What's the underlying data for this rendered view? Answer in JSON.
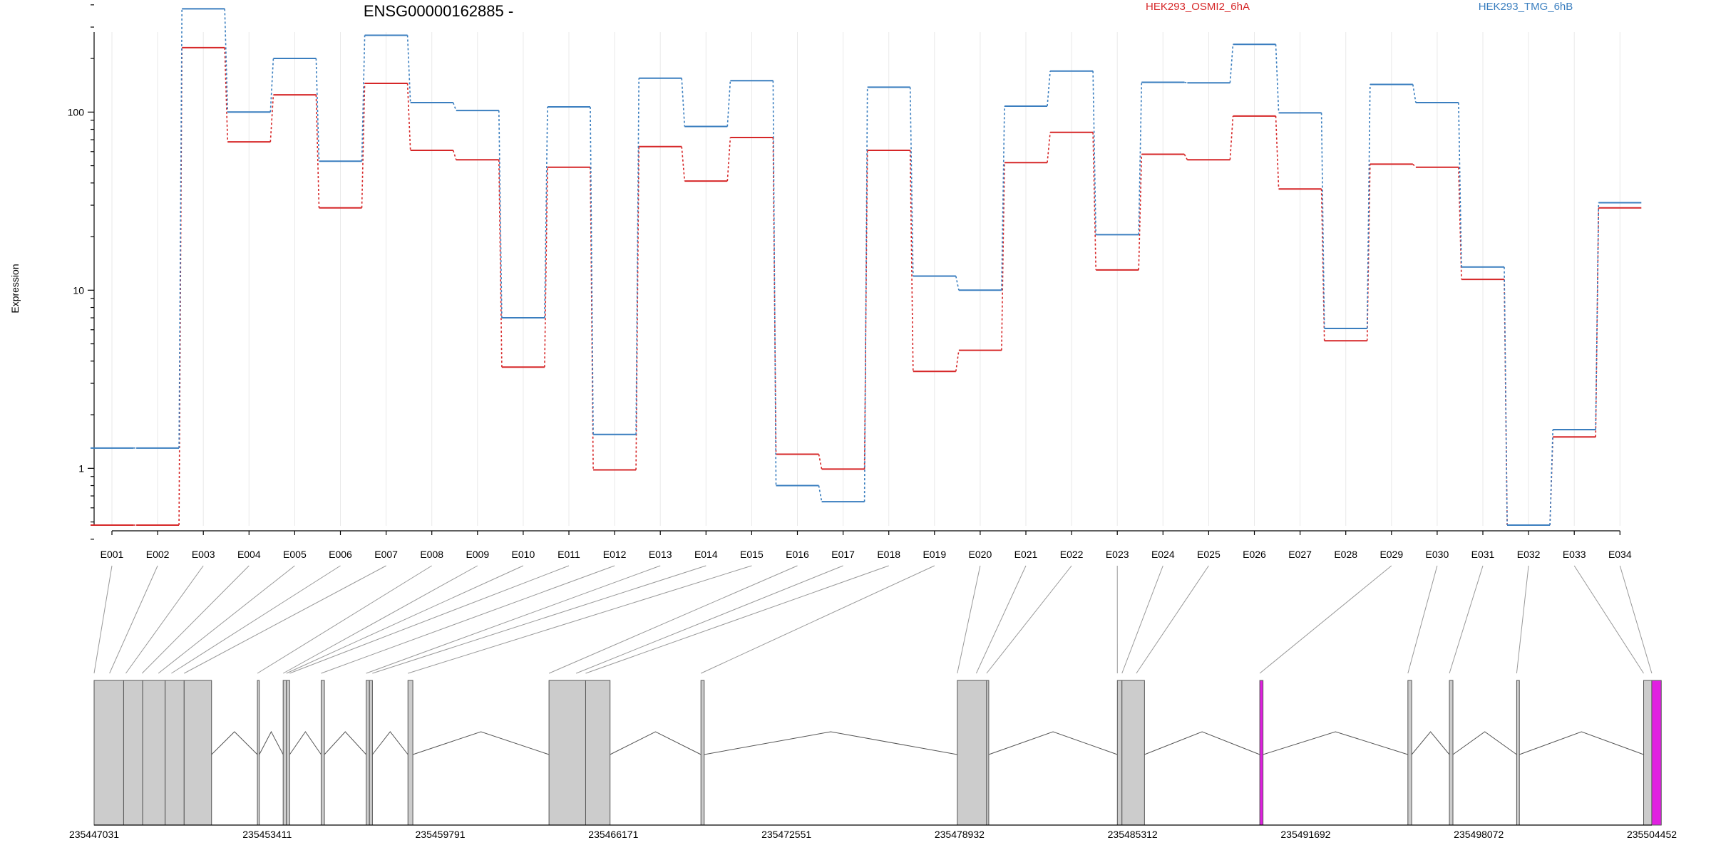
{
  "chart_data": {
    "type": "line",
    "title": "ENSG00000162885 -",
    "ylabel": "Expression",
    "xlabel": "",
    "yscale": "log",
    "ylim": [
      0.4,
      500
    ],
    "ytick_labels": [
      {
        "value": 1,
        "label": "1"
      },
      {
        "value": 10,
        "label": "10"
      },
      {
        "value": 100,
        "label": "100"
      }
    ],
    "categories": [
      "E001",
      "E002",
      "E003",
      "E004",
      "E005",
      "E006",
      "E007",
      "E008",
      "E009",
      "E010",
      "E011",
      "E012",
      "E013",
      "E014",
      "E015",
      "E016",
      "E017",
      "E018",
      "E019",
      "E020",
      "E021",
      "E022",
      "E023",
      "E024",
      "E025",
      "E026",
      "E027",
      "E028",
      "E029",
      "E030",
      "E031",
      "E032",
      "E033",
      "E034"
    ],
    "series": [
      {
        "name": "HEK293_OSMI2_6hA",
        "color": "#d62728",
        "values": [
          0.48,
          0.48,
          230,
          68,
          125,
          29,
          145,
          61,
          54,
          3.7,
          49,
          0.98,
          64,
          41,
          72,
          1.2,
          0.99,
          61,
          3.5,
          4.6,
          52,
          77,
          13,
          58,
          54,
          95,
          37,
          5.2,
          51,
          49,
          11.5,
          0.48,
          1.5,
          29
        ]
      },
      {
        "name": "HEK293_TMG_6hB",
        "color": "#3a7ebf",
        "values": [
          1.3,
          1.3,
          380,
          100,
          200,
          53,
          270,
          113,
          102,
          7,
          107,
          1.55,
          155,
          83,
          150,
          0.8,
          0.65,
          138,
          12,
          10,
          108,
          170,
          20.5,
          147,
          146,
          240,
          99,
          6.1,
          143,
          113,
          13.5,
          0.48,
          1.65,
          31
        ]
      }
    ],
    "gene_model": {
      "coordinate_labels": [
        "235447031",
        "235453411",
        "235459791",
        "235466171",
        "235472551",
        "235478932",
        "235485312",
        "235491692",
        "235498072",
        "235504452"
      ],
      "coord_start": 235447031,
      "coord_end": 235504452,
      "highlight_color": "#e020e0",
      "exons": [
        {
          "start": 235447031,
          "end": 235448120
        },
        {
          "start": 235448120,
          "end": 235448820
        },
        {
          "start": 235448820,
          "end": 235449650
        },
        {
          "start": 235449650,
          "end": 235450350
        },
        {
          "start": 235450350,
          "end": 235451360
        },
        {
          "start": 235453050,
          "end": 235453120
        },
        {
          "start": 235454000,
          "end": 235454120
        },
        {
          "start": 235454120,
          "end": 235454240
        },
        {
          "start": 235455400,
          "end": 235455520
        },
        {
          "start": 235457060,
          "end": 235457180
        },
        {
          "start": 235457180,
          "end": 235457290
        },
        {
          "start": 235458600,
          "end": 235458780
        },
        {
          "start": 235463800,
          "end": 235465150
        },
        {
          "start": 235465150,
          "end": 235466050
        },
        {
          "start": 235469400,
          "end": 235469520
        },
        {
          "start": 235478850,
          "end": 235479930
        },
        {
          "start": 235479930,
          "end": 235480010
        },
        {
          "start": 235484750,
          "end": 235484920
        },
        {
          "start": 235484920,
          "end": 235485750
        },
        {
          "start": 235490000,
          "end": 235490120,
          "highlight": true
        },
        {
          "start": 235495460,
          "end": 235495600
        },
        {
          "start": 235496990,
          "end": 235497120
        },
        {
          "start": 235499470,
          "end": 235499570
        },
        {
          "start": 235504150,
          "end": 235504450
        },
        {
          "start": 235504450,
          "end": 235504800,
          "highlight": true
        }
      ],
      "connectors": [
        {
          "exon": "E001",
          "coord": 235447031
        },
        {
          "exon": "E002",
          "coord": 235447600
        },
        {
          "exon": "E003",
          "coord": 235448200
        },
        {
          "exon": "E004",
          "coord": 235448800
        },
        {
          "exon": "E005",
          "coord": 235449400
        },
        {
          "exon": "E006",
          "coord": 235449880
        },
        {
          "exon": "E007",
          "coord": 235450350
        },
        {
          "exon": "E008",
          "coord": 235453050
        },
        {
          "exon": "E009",
          "coord": 235454000
        },
        {
          "exon": "E010",
          "coord": 235454120
        },
        {
          "exon": "E011",
          "coord": 235454240
        },
        {
          "exon": "E012",
          "coord": 235455400
        },
        {
          "exon": "E013",
          "coord": 235457060
        },
        {
          "exon": "E014",
          "coord": 235457290
        },
        {
          "exon": "E015",
          "coord": 235458600
        },
        {
          "exon": "E016",
          "coord": 235463800
        },
        {
          "exon": "E017",
          "coord": 235464800
        },
        {
          "exon": "E018",
          "coord": 235465150
        },
        {
          "exon": "E019",
          "coord": 235469400
        },
        {
          "exon": "E020",
          "coord": 235478850
        },
        {
          "exon": "E021",
          "coord": 235479550
        },
        {
          "exon": "E022",
          "coord": 235479930
        },
        {
          "exon": "E023",
          "coord": 235484750
        },
        {
          "exon": "E024",
          "coord": 235484920
        },
        {
          "exon": "E025",
          "coord": 235485450
        },
        {
          "exon": "E029",
          "coord": 235490000,
          "highlight": true
        },
        {
          "exon": "E030",
          "coord": 235495460
        },
        {
          "exon": "E031",
          "coord": 235496990
        },
        {
          "exon": "E032",
          "coord": 235499470
        },
        {
          "exon": "E033",
          "coord": 235504150
        },
        {
          "exon": "E034",
          "coord": 235504450,
          "highlight": true
        }
      ]
    }
  }
}
